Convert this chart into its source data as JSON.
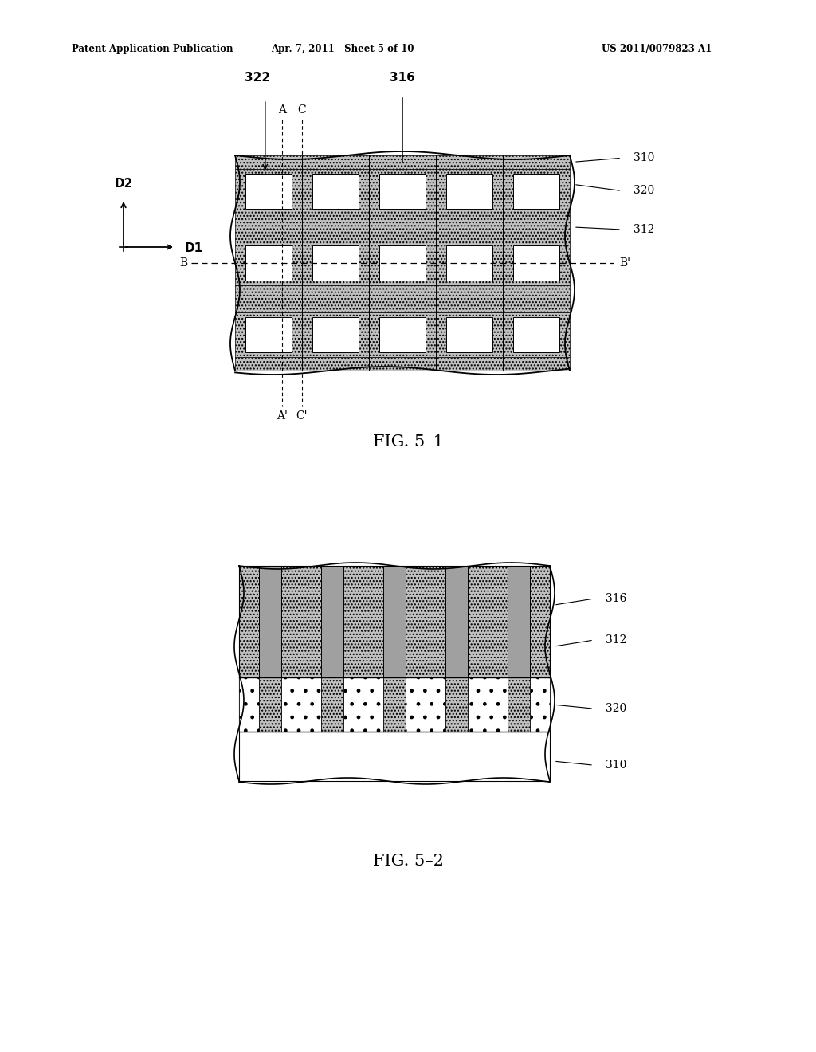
{
  "bg_color": "#ffffff",
  "header_left": "Patent Application Publication",
  "header_mid": "Apr. 7, 2011   Sheet 5 of 10",
  "header_right": "US 2011/0079823 A1",
  "fig1_title": "FIG. 5–1",
  "fig2_title": "FIG. 5–2"
}
